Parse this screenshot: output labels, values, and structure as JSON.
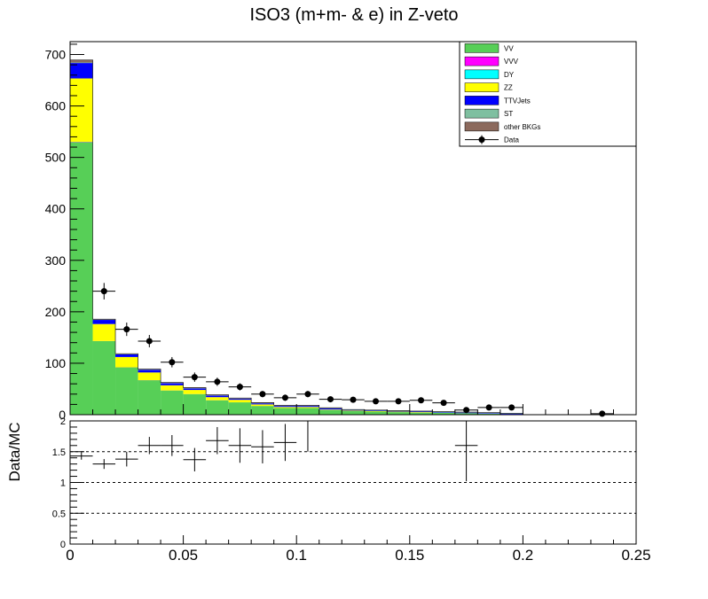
{
  "chart_data": [
    {
      "type": "bar",
      "stacked": true,
      "title": "ISO3 (m+m- & e) in Z-veto",
      "xlabel": "",
      "ylabel": "",
      "xlim": [
        0,
        0.25
      ],
      "ylim": [
        0,
        725
      ],
      "y_ticks": [
        0,
        100,
        200,
        300,
        400,
        500,
        600,
        700
      ],
      "x_ticks": [
        0,
        0.05,
        0.1,
        0.15,
        0.2,
        0.25
      ],
      "x_tick_labels": [
        "0",
        "0.05",
        "0.1",
        "0.15",
        "0.2",
        "0.25"
      ],
      "bin_edges": [
        0,
        0.01,
        0.02,
        0.03,
        0.04,
        0.05,
        0.06,
        0.07,
        0.08,
        0.09,
        0.1,
        0.11,
        0.12,
        0.13,
        0.14,
        0.15,
        0.16,
        0.17,
        0.18,
        0.19,
        0.2,
        0.21,
        0.22,
        0.23,
        0.24,
        0.25
      ],
      "legend_position": "top-right",
      "series": [
        {
          "name": "VV",
          "color": "#57cf57",
          "values": [
            530,
            143,
            92,
            67,
            47,
            40,
            28,
            24,
            17,
            13,
            13,
            9,
            7,
            6,
            5,
            4,
            4,
            3,
            2,
            1,
            0,
            0,
            0,
            0,
            0
          ]
        },
        {
          "name": "VVV",
          "color": "#ff00ff",
          "values": [
            0.5,
            0.2,
            0.1,
            0.1,
            0.1,
            0.1,
            0.1,
            0,
            0,
            0,
            0,
            0,
            0,
            0,
            0,
            0,
            0,
            0,
            0,
            0,
            0,
            0,
            0,
            0,
            0
          ]
        },
        {
          "name": "DY",
          "color": "#00ffff",
          "values": [
            0,
            0,
            0,
            0,
            0,
            0,
            0,
            0,
            0,
            0,
            0,
            0,
            0,
            0,
            0,
            0,
            0,
            0,
            0,
            0,
            0,
            0,
            0,
            0,
            0
          ]
        },
        {
          "name": "ZZ",
          "color": "#ffff00",
          "values": [
            123,
            33,
            20,
            15,
            10,
            8,
            6,
            5,
            3,
            2,
            2,
            1,
            1,
            1,
            1,
            1,
            0,
            0,
            0,
            0,
            0,
            0,
            0,
            0,
            0
          ]
        },
        {
          "name": "TTVJets",
          "color": "#0000ff",
          "values": [
            30,
            8,
            5,
            5,
            4,
            3,
            3,
            2,
            2,
            2,
            2,
            2,
            1,
            1,
            1,
            1,
            1,
            1,
            1,
            1,
            0,
            0,
            0,
            0,
            0
          ]
        },
        {
          "name": "ST",
          "color": "#7fbfa0",
          "values": [
            1,
            0.5,
            0.5,
            0.5,
            0.5,
            0.5,
            0.5,
            0.5,
            0.5,
            0.5,
            0.5,
            0.5,
            0.5,
            0.5,
            0.5,
            0.5,
            0.5,
            0.5,
            0.5,
            0.5,
            0,
            0,
            0,
            0,
            0
          ]
        },
        {
          "name": "other BKGs",
          "color": "#8c6a5d",
          "values": [
            5,
            1,
            1,
            1,
            1,
            1,
            1,
            1,
            1,
            1,
            1,
            1,
            0.5,
            0.5,
            0.5,
            0.5,
            0.5,
            0.5,
            0.5,
            0.5,
            0,
            0,
            0,
            0,
            0
          ]
        }
      ],
      "data_points": {
        "name": "Data",
        "x": [
          0.015,
          0.025,
          0.035,
          0.045,
          0.055,
          0.065,
          0.075,
          0.085,
          0.095,
          0.105,
          0.115,
          0.125,
          0.135,
          0.145,
          0.155,
          0.165,
          0.175,
          0.185,
          0.195,
          0.235
        ],
        "y": [
          240,
          166,
          143,
          102,
          73,
          64,
          54,
          40,
          33,
          40,
          30,
          29,
          26,
          26,
          28,
          23,
          9,
          14,
          14,
          2
        ],
        "yerr": [
          16,
          13,
          12,
          10,
          9,
          8,
          7,
          6,
          6,
          6,
          5,
          5,
          5,
          5,
          5,
          5,
          3,
          4,
          4,
          1.5
        ],
        "xerr": 0.005
      }
    },
    {
      "type": "scatter",
      "title": "",
      "xlabel": "",
      "ylabel": "Data/MC",
      "xlim": [
        0,
        0.25
      ],
      "ylim": [
        0,
        2
      ],
      "y_ticks": [
        0,
        0.5,
        1,
        1.5,
        2
      ],
      "y_tick_labels": [
        "0",
        "0.5",
        "1",
        "1.5",
        "2"
      ],
      "reference_lines": [
        0.5,
        1,
        1.5
      ],
      "grid": "dashed horizontal at 0.5, 1, 1.5",
      "points": {
        "x": [
          0.005,
          0.015,
          0.025,
          0.035,
          0.045,
          0.055,
          0.065,
          0.075,
          0.085,
          0.095,
          0.105,
          0.175
        ],
        "y": [
          1.43,
          1.3,
          1.38,
          1.6,
          1.6,
          1.37,
          1.68,
          1.6,
          1.58,
          1.65,
          2.05,
          1.6
        ],
        "yerr": [
          0.06,
          0.08,
          0.12,
          0.14,
          0.17,
          0.19,
          0.22,
          0.28,
          0.27,
          0.3,
          0.55,
          0.58
        ],
        "xerr": 0.005
      }
    }
  ]
}
